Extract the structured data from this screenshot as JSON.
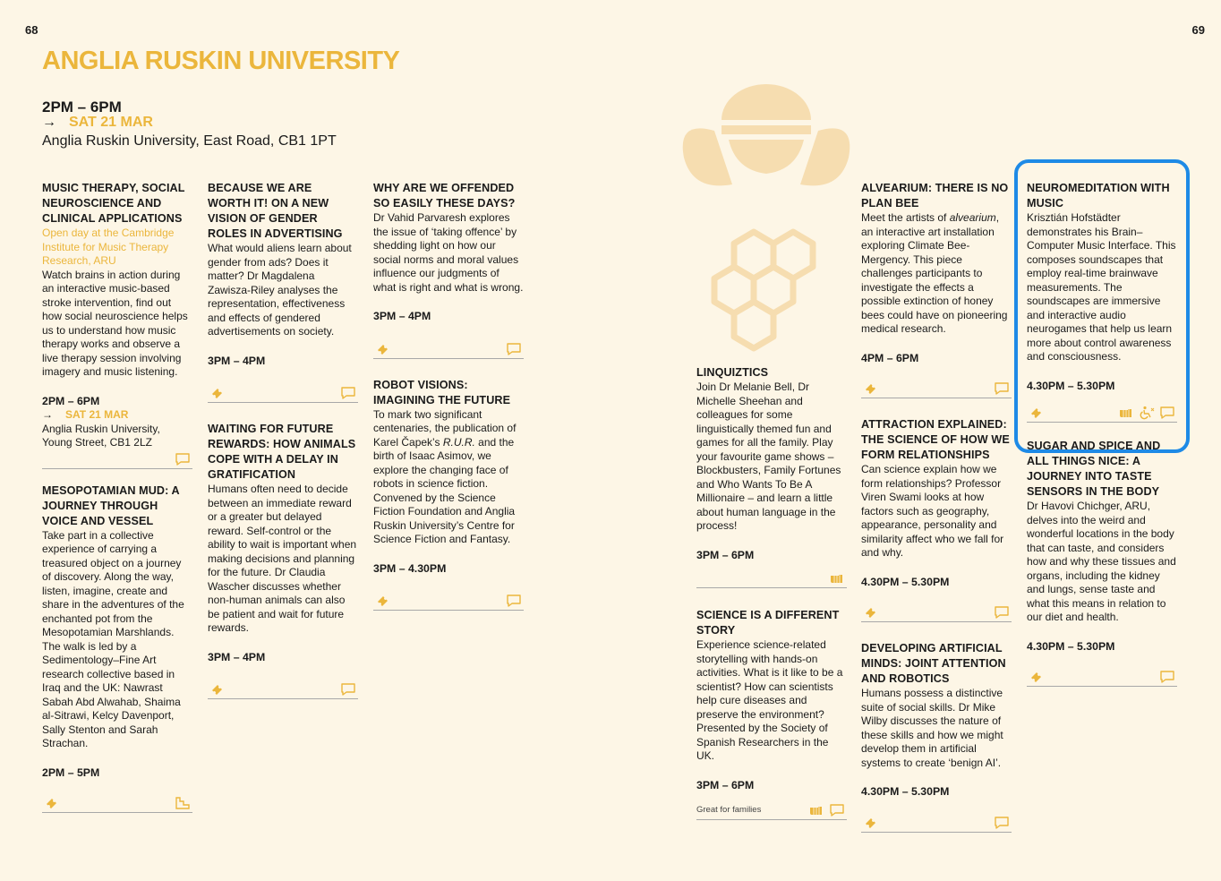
{
  "page_numbers": {
    "left": "68",
    "right": "69"
  },
  "title": "ANGLIA RUSKIN UNIVERSITY",
  "header": {
    "time": "2PM – 6PM",
    "arrow": "→",
    "date": "SAT 21 MAR",
    "venue": "Anglia Ruskin University, East Road, CB1 1PT"
  },
  "colors": {
    "accent": "#ebb63c",
    "highlight": "#1e8ae6",
    "background": "#fdf6e6"
  },
  "icons": {
    "ticket": "ticket-icon",
    "speech": "speech-bubble-icon",
    "hand": "hands-on-icon",
    "accessible": "accessibility-icon",
    "stair": "step-icon"
  },
  "events": {
    "music_therapy": {
      "title": "MUSIC THERAPY, SOCIAL NEUROSCIENCE AND CLINICAL APPLICATIONS",
      "subtitle": "Open day at the Cambridge Institute for Music Therapy Research, ARU",
      "body": "Watch brains in action during an interactive music-based stroke intervention, find out how social neuroscience helps us to understand how music therapy works and observe a live therapy session involving imagery and music listening.",
      "time": "2PM – 6PM",
      "arrow": "→",
      "date": "SAT 21 MAR",
      "venue": "Anglia Ruskin University, Young Street, CB1 2LZ"
    },
    "mesopotamian": {
      "title": "MESOPOTAMIAN MUD: A JOURNEY THROUGH VOICE AND VESSEL",
      "body": "Take part in a collective experience of carrying a treasured object on a journey of discovery. Along the way, listen, imagine, create and share in the adventures of the enchanted pot from the Mesopotamian Marshlands. The walk is led by a Sedimentology–Fine Art research collective based in Iraq and the UK: Nawrast Sabah Abd Alwahab, Shaima al-Sitrawi, Kelcy Davenport, Sally Stenton and Sarah Strachan.",
      "time": "2PM – 5PM"
    },
    "gender_roles": {
      "title": "BECAUSE WE ARE WORTH IT! ON A NEW VISION OF GENDER ROLES IN ADVERTISING",
      "body": "What would aliens learn about gender from ads? Does it matter? Dr Magdalena Zawisza-Riley analyses the representation, effectiveness and effects of gendered advertisements on society.",
      "time": "3PM – 4PM"
    },
    "future_rewards": {
      "title": "WAITING FOR FUTURE REWARDS: HOW ANIMALS COPE WITH A DELAY IN GRATIFICATION",
      "body": "Humans often need to decide between an immediate reward or a greater but delayed reward. Self-control or the ability to wait is important when making decisions and planning for the future. Dr Claudia Wascher discusses whether non-human animals can also be patient and wait for future rewards.",
      "time": "3PM – 4PM"
    },
    "offended": {
      "title": "WHY ARE WE OFFENDED SO EASILY THESE DAYS?",
      "body": "Dr Vahid Parvaresh explores the issue of ‘taking offence’ by shedding light on how our social norms and moral values influence our judgments of what is right and what is wrong.",
      "time": "3PM – 4PM"
    },
    "robot_visions": {
      "title": "ROBOT VISIONS: IMAGINING THE FUTURE",
      "body_pre": "To mark two significant centenaries, the publication of Karel Čapek’s ",
      "body_em": "R.U.R.",
      "body_post": " and the birth of Isaac Asimov, we explore the changing face of robots in science fiction. Convened by the Science Fiction Foundation and Anglia Ruskin University’s Centre for Science Fiction and Fantasy.",
      "time": "3PM – 4.30PM"
    },
    "linquiztics": {
      "title": "LINQUIZTICS",
      "body": "Join Dr Melanie Bell, Dr Michelle Sheehan and colleagues for some linguistically themed fun and games for all the family. Play your favourite game shows – Blockbusters, Family Fortunes and Who Wants To Be A Millionaire – and learn a little about human language in the process!",
      "time": "3PM – 6PM"
    },
    "science_story": {
      "title": "SCIENCE IS A DIFFERENT STORY",
      "body": "Experience science-related storytelling with hands-on activities. What is it like to be a scientist? How can scientists help cure diseases and preserve the environment? Presented by the Society of Spanish Researchers in the UK.",
      "time": "3PM – 6PM",
      "note": "Great for families"
    },
    "alvearium": {
      "title": "ALVEARIUM: THERE IS NO PLAN BEE",
      "body_pre": "Meet the artists of ",
      "body_em": "alvearium",
      "body_post": ", an interactive art installation exploring Climate Bee-Mergency. This piece challenges participants to investigate the effects a possible extinction of honey bees could have on pioneering medical research.",
      "time": "4PM – 6PM"
    },
    "attraction": {
      "title": "ATTRACTION EXPLAINED: THE SCIENCE OF HOW WE FORM RELATIONSHIPS",
      "body": "Can science explain how we form relationships? Professor Viren Swami looks at how factors such as geography, appearance, personality and similarity affect who we fall for and why.",
      "time": "4.30PM – 5.30PM"
    },
    "ai_minds": {
      "title": "DEVELOPING ARTIFICIAL MINDS: JOINT ATTENTION AND ROBOTICS",
      "body": "Humans possess a distinctive suite of social skills. Dr Mike Wilby discusses the nature of these skills and how we might develop them in artificial systems to create ‘benign AI’.",
      "time": "4.30PM – 5.30PM"
    },
    "neuromeditation": {
      "title": "NEUROMEDITATION WITH MUSIC",
      "body": "Krisztián Hofstädter demonstrates his Brain–Computer Music Interface. This composes soundscapes that employ real-time brainwave measurements. The soundscapes are immersive and interactive audio neurogames that help us learn more about control awareness and consciousness.",
      "time": "4.30PM – 5.30PM"
    },
    "sugar_spice": {
      "title": "SUGAR AND SPICE AND ALL THINGS NICE: A JOURNEY INTO TASTE SENSORS IN THE BODY",
      "body": "Dr Havovi Chichger, ARU, delves into the weird and wonderful locations in the body that can taste, and considers how and why these tissues and organs, including the kidney and lungs, sense taste and what this means in relation to our diet and health.",
      "time": "4.30PM – 5.30PM"
    }
  }
}
